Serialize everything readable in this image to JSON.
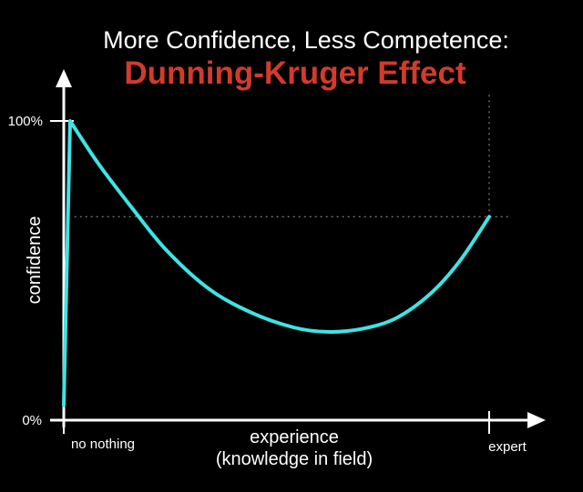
{
  "chart_data": {
    "type": "line",
    "title": "Dunning-Kruger Effect",
    "subtitle": "More Confidence, Less Competence:",
    "xlabel_line1": "experience",
    "xlabel_line2": "(knowledge in field)",
    "ylabel": "confidence",
    "x_tick_labels": {
      "start": "no nothing",
      "end": "expert"
    },
    "y_tick_labels": {
      "top": "100%",
      "bottom": "0%"
    },
    "xlim": [
      0,
      100
    ],
    "ylim": [
      0,
      100
    ],
    "grid": false,
    "series": [
      {
        "points": [
          [
            0,
            5
          ],
          [
            1.5,
            100
          ],
          [
            8,
            86
          ],
          [
            16,
            71
          ],
          [
            24,
            57
          ],
          [
            34,
            44
          ],
          [
            44,
            36
          ],
          [
            54,
            31
          ],
          [
            62,
            29.5
          ],
          [
            70,
            30.5
          ],
          [
            78,
            34
          ],
          [
            86,
            42
          ],
          [
            93,
            53
          ],
          [
            100,
            68
          ]
        ],
        "color": "#3fe3e3"
      }
    ],
    "reference_lines": [
      {
        "orientation": "horizontal",
        "y": 68,
        "from_x": 2.5,
        "to_x": 105
      },
      {
        "orientation": "vertical",
        "x": 100,
        "from_y": 68,
        "to_y": 110
      }
    ],
    "colors": {
      "background": "#000000",
      "title": "#d23b2b",
      "text": "#ffffff",
      "axis": "#ffffff",
      "reference": "#9a9a9a"
    }
  }
}
